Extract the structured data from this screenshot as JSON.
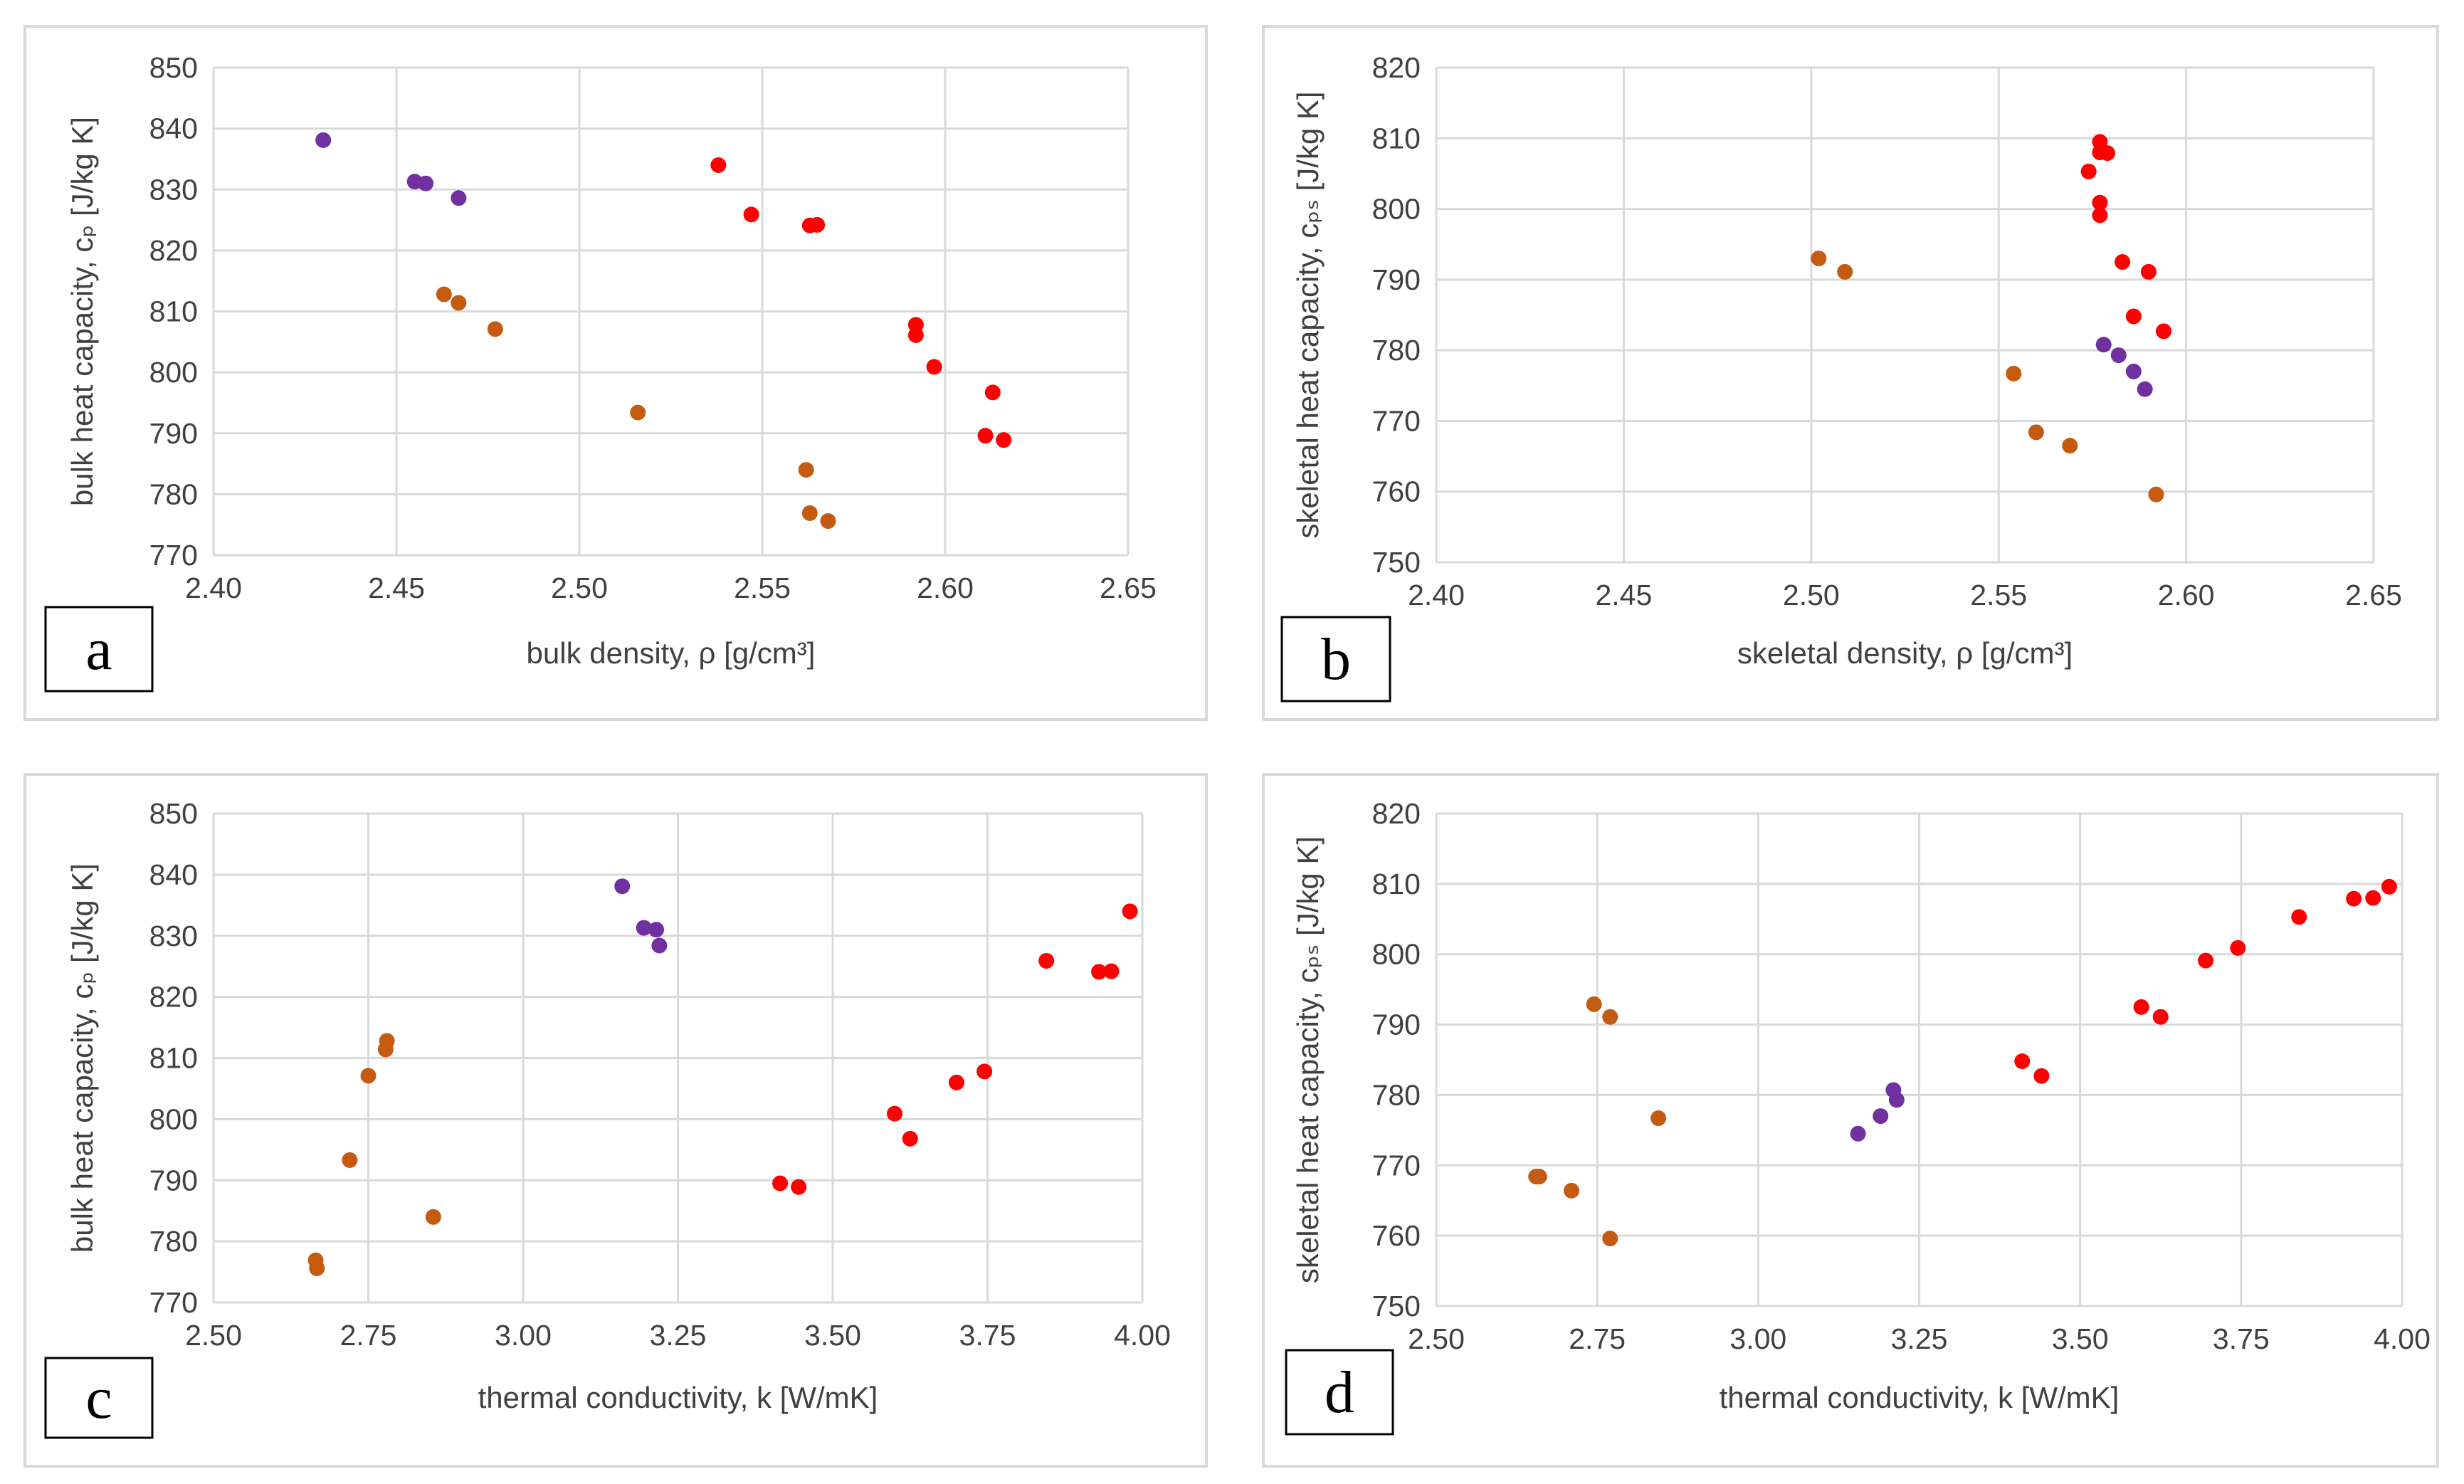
{
  "colors": {
    "purple": "#7030a0",
    "red": "#ff0000",
    "orange": "#c55a11",
    "grid": "#d9d9d9",
    "text": "#404040"
  },
  "chart_data": [
    {
      "panel": "a",
      "type": "scatter",
      "xlabel": "bulk density, ρ [g/cm³]",
      "ylabel": "bulk heat capacity, cₚ  [J/kg K]",
      "xlim": [
        2.4,
        2.65
      ],
      "ylim": [
        770,
        850
      ],
      "xticks": [
        "2.40",
        "2.45",
        "2.50",
        "2.55",
        "2.60",
        "2.65"
      ],
      "yticks": [
        "770",
        "780",
        "790",
        "800",
        "810",
        "820",
        "830",
        "840",
        "850"
      ],
      "grid": true,
      "series": [
        {
          "name": "purple",
          "color": "#7030a0",
          "points": [
            [
              2.43,
              838.1
            ],
            [
              2.455,
              831.3
            ],
            [
              2.458,
              831.0
            ],
            [
              2.467,
              828.6
            ]
          ]
        },
        {
          "name": "red",
          "color": "#ff0000",
          "points": [
            [
              2.538,
              834.0
            ],
            [
              2.547,
              825.9
            ],
            [
              2.563,
              824.1
            ],
            [
              2.565,
              824.2
            ],
            [
              2.592,
              807.8
            ],
            [
              2.592,
              806.1
            ],
            [
              2.597,
              800.9
            ],
            [
              2.613,
              796.7
            ],
            [
              2.611,
              789.6
            ],
            [
              2.616,
              788.9
            ]
          ]
        },
        {
          "name": "orange",
          "color": "#c55a11",
          "points": [
            [
              2.463,
              812.8
            ],
            [
              2.467,
              811.4
            ],
            [
              2.477,
              807.1
            ],
            [
              2.516,
              793.4
            ],
            [
              2.562,
              784.0
            ],
            [
              2.563,
              776.9
            ],
            [
              2.568,
              775.6
            ]
          ]
        }
      ]
    },
    {
      "panel": "b",
      "type": "scatter",
      "xlabel": "skeletal density, ρ [g/cm³]",
      "ylabel": "skeletal heat capacity, cₚₛ  [J/kg K]",
      "xlim": [
        2.4,
        2.65
      ],
      "ylim": [
        750,
        820
      ],
      "xticks": [
        "2.40",
        "2.45",
        "2.50",
        "2.55",
        "2.60",
        "2.65"
      ],
      "yticks": [
        "750",
        "760",
        "770",
        "780",
        "790",
        "800",
        "810",
        "820"
      ],
      "grid": true,
      "series": [
        {
          "name": "purple",
          "color": "#7030a0",
          "points": [
            [
              2.578,
              780.8
            ],
            [
              2.582,
              779.3
            ],
            [
              2.586,
              777.0
            ],
            [
              2.589,
              774.5
            ]
          ]
        },
        {
          "name": "red",
          "color": "#ff0000",
          "points": [
            [
              2.577,
              809.5
            ],
            [
              2.577,
              808.0
            ],
            [
              2.579,
              807.9
            ],
            [
              2.574,
              805.3
            ],
            [
              2.577,
              800.9
            ],
            [
              2.577,
              799.1
            ],
            [
              2.583,
              792.5
            ],
            [
              2.59,
              791.1
            ],
            [
              2.586,
              784.8
            ],
            [
              2.594,
              782.7
            ]
          ]
        },
        {
          "name": "orange",
          "color": "#c55a11",
          "points": [
            [
              2.502,
              793.0
            ],
            [
              2.509,
              791.1
            ],
            [
              2.554,
              776.7
            ],
            [
              2.56,
              768.4
            ],
            [
              2.569,
              766.5
            ],
            [
              2.592,
              759.6
            ]
          ]
        }
      ]
    },
    {
      "panel": "c",
      "type": "scatter",
      "xlabel": "thermal conductivity, k [W/mK]",
      "ylabel": "bulk heat capacity, cₚ  [J/kg K]",
      "xlim": [
        2.5,
        4.0
      ],
      "ylim": [
        770,
        850
      ],
      "xticks": [
        "2.50",
        "2.75",
        "3.00",
        "3.25",
        "3.50",
        "3.75",
        "4.00"
      ],
      "yticks": [
        "770",
        "780",
        "790",
        "800",
        "810",
        "820",
        "830",
        "840",
        "850"
      ],
      "grid": true,
      "series": [
        {
          "name": "purple",
          "color": "#7030a0",
          "points": [
            [
              3.16,
              838.1
            ],
            [
              3.195,
              831.3
            ],
            [
              3.215,
              831.0
            ],
            [
              3.22,
              828.4
            ]
          ]
        },
        {
          "name": "red",
          "color": "#ff0000",
          "points": [
            [
              3.98,
              834.0
            ],
            [
              3.845,
              825.9
            ],
            [
              3.93,
              824.1
            ],
            [
              3.95,
              824.2
            ],
            [
              3.745,
              807.8
            ],
            [
              3.7,
              806.0
            ],
            [
              3.6,
              800.9
            ],
            [
              3.625,
              796.8
            ],
            [
              3.415,
              789.5
            ],
            [
              3.445,
              788.9
            ]
          ]
        },
        {
          "name": "orange",
          "color": "#c55a11",
          "points": [
            [
              2.78,
              812.8
            ],
            [
              2.778,
              811.4
            ],
            [
              2.75,
              807.1
            ],
            [
              2.72,
              793.3
            ],
            [
              2.855,
              784.0
            ],
            [
              2.665,
              776.9
            ],
            [
              2.667,
              775.6
            ]
          ]
        }
      ]
    },
    {
      "panel": "d",
      "type": "scatter",
      "xlabel": "thermal conductivity, k [W/mK]",
      "ylabel": "skeletal heat capacity, cₚₛ  [J/kg K]",
      "xlim": [
        2.5,
        4.0
      ],
      "ylim": [
        750,
        820
      ],
      "xticks": [
        "2.50",
        "2.75",
        "3.00",
        "3.25",
        "3.50",
        "3.75",
        "4.00"
      ],
      "yticks": [
        "750",
        "760",
        "770",
        "780",
        "790",
        "800",
        "810",
        "820"
      ],
      "grid": true,
      "series": [
        {
          "name": "purple",
          "color": "#7030a0",
          "points": [
            [
              3.21,
              780.7
            ],
            [
              3.215,
              779.3
            ],
            [
              3.19,
              777.0
            ],
            [
              3.155,
              774.5
            ]
          ]
        },
        {
          "name": "red",
          "color": "#ff0000",
          "points": [
            [
              3.98,
              809.6
            ],
            [
              3.955,
              808.0
            ],
            [
              3.925,
              807.9
            ],
            [
              3.84,
              805.3
            ],
            [
              3.745,
              800.9
            ],
            [
              3.695,
              799.1
            ],
            [
              3.595,
              792.5
            ],
            [
              3.625,
              791.1
            ],
            [
              3.41,
              784.8
            ],
            [
              3.44,
              782.7
            ]
          ]
        },
        {
          "name": "orange",
          "color": "#c55a11",
          "points": [
            [
              2.745,
              792.9
            ],
            [
              2.77,
              791.1
            ],
            [
              2.845,
              776.7
            ],
            [
              2.655,
              768.4
            ],
            [
              2.66,
              768.4
            ],
            [
              2.71,
              766.4
            ],
            [
              2.77,
              759.6
            ]
          ]
        }
      ]
    }
  ]
}
